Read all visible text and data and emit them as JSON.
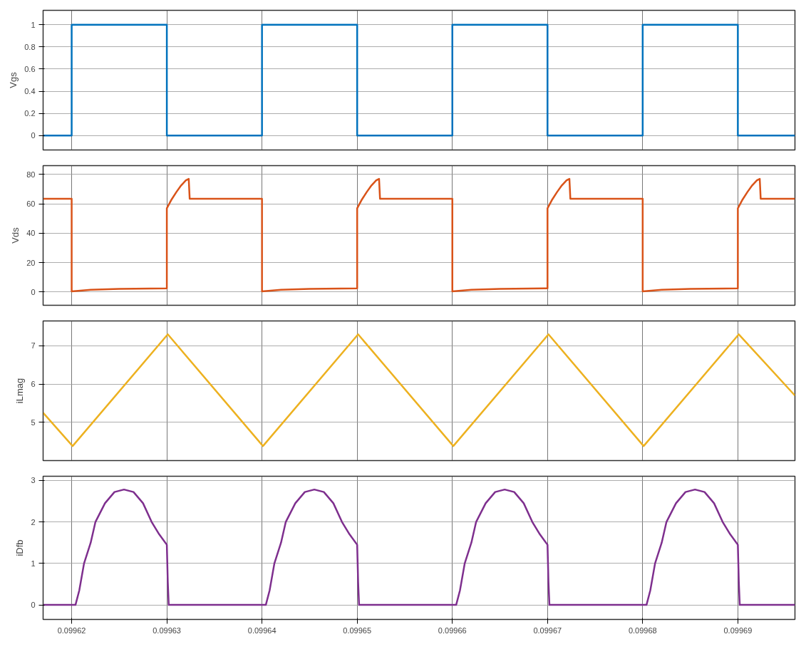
{
  "chart_data": [
    {
      "type": "line",
      "ylabel": "Vgs",
      "xlim": [
        0.099617,
        0.099696
      ],
      "ylim": [
        -0.13,
        1.13
      ],
      "xticks": [
        0.09962,
        0.09963,
        0.09964,
        0.09965,
        0.09966,
        0.09967,
        0.09968,
        0.09969
      ],
      "yticks": [
        0,
        0.2,
        0.4,
        0.6,
        0.8,
        1
      ],
      "grid": true,
      "tick_labels": "y",
      "series": [
        {
          "color": "#0072bd",
          "x": [
            0.099617,
            0.09962,
            0.09962,
            0.09963,
            0.09963,
            0.09964,
            0.09964,
            0.09965,
            0.09965,
            0.09966,
            0.09966,
            0.09967,
            0.09967,
            0.09968,
            0.09968,
            0.09969,
            0.09969,
            0.099696
          ],
          "values": [
            0,
            0,
            1,
            1,
            0,
            0,
            1,
            1,
            0,
            0,
            1,
            1,
            0,
            0,
            1,
            1,
            0,
            0
          ]
        }
      ]
    },
    {
      "type": "line",
      "ylabel": "Vds",
      "xlim": [
        0.099617,
        0.099696
      ],
      "ylim": [
        -9,
        86
      ],
      "xticks": [
        0.09962,
        0.09963,
        0.09964,
        0.09965,
        0.09966,
        0.09967,
        0.09968,
        0.09969
      ],
      "yticks": [
        0,
        20,
        40,
        60,
        80
      ],
      "grid": true,
      "tick_labels": "y",
      "series": [
        {
          "color": "#d95319",
          "x": [
            0.099617,
            0.09962,
            0.09962,
            0.099622,
            0.099625,
            0.09963,
            0.09963,
            0.0996305,
            0.099631,
            0.0996315,
            0.099632,
            0.0996323,
            0.0996324,
            0.09964,
            0.09964,
            0.099642,
            0.099645,
            0.09965,
            0.09965,
            0.0996505,
            0.099651,
            0.0996515,
            0.099652,
            0.0996523,
            0.0996524,
            0.09966,
            0.09966,
            0.099662,
            0.099665,
            0.09967,
            0.09967,
            0.0996705,
            0.099671,
            0.0996715,
            0.099672,
            0.0996723,
            0.0996724,
            0.09968,
            0.09968,
            0.099682,
            0.099685,
            0.09969,
            0.09969,
            0.0996905,
            0.099691,
            0.0996915,
            0.099692,
            0.0996923,
            0.0996924,
            0.099696
          ],
          "values": [
            63.5,
            63.5,
            0.5,
            1.5,
            2.2,
            2.5,
            57,
            63,
            68,
            72.5,
            76,
            77,
            63.5,
            63.5,
            0.5,
            1.5,
            2.2,
            2.5,
            57,
            63,
            68,
            72.5,
            76,
            77,
            63.5,
            63.5,
            0.5,
            1.5,
            2.2,
            2.5,
            57,
            63,
            68,
            72.5,
            76,
            77,
            63.5,
            63.5,
            0.5,
            1.5,
            2.2,
            2.5,
            57,
            63,
            68,
            72.5,
            76,
            77,
            63.5,
            63.5
          ]
        }
      ]
    },
    {
      "type": "line",
      "ylabel": "iLmag",
      "xlim": [
        0.099617,
        0.099696
      ],
      "ylim": [
        4.0,
        7.65
      ],
      "xticks": [
        0.09962,
        0.09963,
        0.09964,
        0.09965,
        0.09966,
        0.09967,
        0.09968,
        0.09969
      ],
      "yticks": [
        5,
        6,
        7
      ],
      "grid": true,
      "tick_labels": "y",
      "series": [
        {
          "color": "#edb120",
          "x": [
            0.099617,
            0.0996201,
            0.0996301,
            0.0996401,
            0.0996501,
            0.0996601,
            0.0996701,
            0.0996801,
            0.0996901,
            0.099696
          ],
          "values": [
            5.25,
            4.38,
            7.3,
            4.38,
            7.3,
            4.38,
            7.3,
            4.38,
            7.3,
            5.7
          ]
        }
      ]
    },
    {
      "type": "line",
      "ylabel": "iDfb",
      "xlim": [
        0.099617,
        0.099696
      ],
      "ylim": [
        -0.35,
        3.1
      ],
      "xticks": [
        0.09962,
        0.09963,
        0.09964,
        0.09965,
        0.09966,
        0.09967,
        0.09968,
        0.09969
      ],
      "yticks": [
        0,
        1,
        2,
        3
      ],
      "grid": true,
      "series": [
        {
          "color": "#7e2f8e",
          "x": [
            0.099617,
            0.0996204,
            0.0996208,
            0.0996213,
            0.099622,
            0.0996225,
            0.0996235,
            0.0996245,
            0.0996255,
            0.0996265,
            0.0996275,
            0.0996284,
            0.0996292,
            0.09963,
            0.0996301,
            0.0996302,
            0.0996404,
            0.0996408,
            0.0996413,
            0.099642,
            0.0996425,
            0.0996435,
            0.0996445,
            0.0996455,
            0.0996465,
            0.0996475,
            0.0996484,
            0.0996492,
            0.09965,
            0.0996501,
            0.0996502,
            0.0996604,
            0.0996608,
            0.0996613,
            0.099662,
            0.0996625,
            0.0996635,
            0.0996645,
            0.0996655,
            0.0996665,
            0.0996675,
            0.0996684,
            0.0996692,
            0.09967,
            0.0996701,
            0.0996702,
            0.0996804,
            0.0996808,
            0.0996813,
            0.099682,
            0.0996825,
            0.0996835,
            0.0996845,
            0.0996855,
            0.0996865,
            0.0996875,
            0.0996884,
            0.0996892,
            0.09969,
            0.0996901,
            0.0996902,
            0.099696
          ],
          "values": [
            0,
            0,
            0.35,
            1.0,
            1.5,
            2.0,
            2.45,
            2.72,
            2.78,
            2.72,
            2.45,
            2.0,
            1.7,
            1.45,
            0.55,
            0,
            0,
            0.35,
            1.0,
            1.5,
            2.0,
            2.45,
            2.72,
            2.78,
            2.72,
            2.45,
            2.0,
            1.7,
            1.45,
            0.55,
            0,
            0,
            0.35,
            1.0,
            1.5,
            2.0,
            2.45,
            2.72,
            2.78,
            2.72,
            2.45,
            2.0,
            1.7,
            1.45,
            0.55,
            0,
            0,
            0.35,
            1.0,
            1.5,
            2.0,
            2.45,
            2.72,
            2.78,
            2.72,
            2.45,
            2.0,
            1.7,
            1.45,
            0.55,
            0,
            0
          ]
        }
      ]
    }
  ]
}
